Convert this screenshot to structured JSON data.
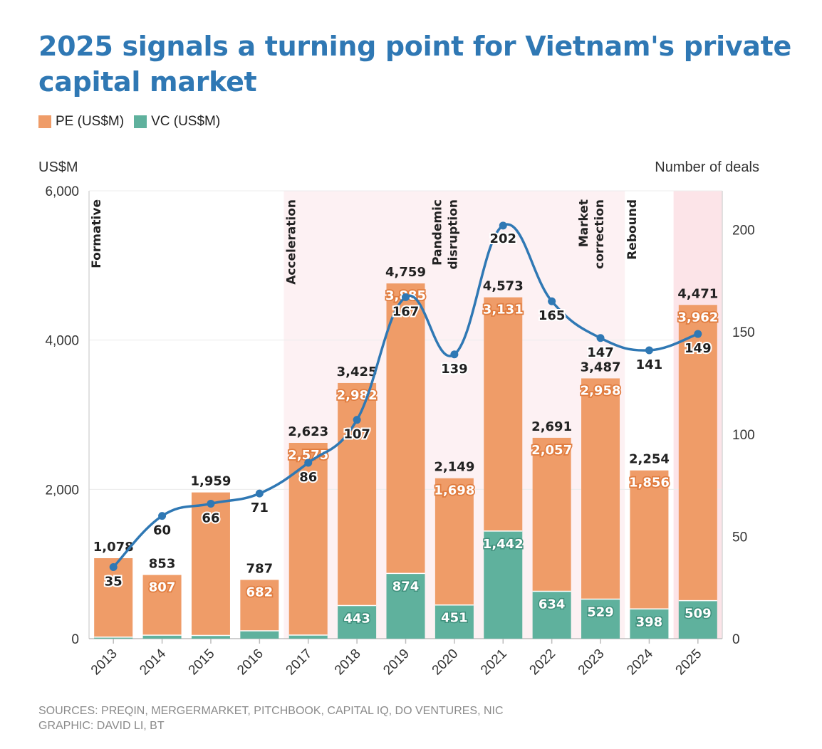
{
  "title": "2025 signals a turning point for Vietnam's private capital market",
  "legend": [
    {
      "label": "PE (US$M)",
      "color": "#ef9c68"
    },
    {
      "label": "VC (US$M)",
      "color": "#5fb19d"
    }
  ],
  "left_axis_label": "US$M",
  "right_axis_label": "Number of deals",
  "phases": [
    {
      "label": "Formative",
      "start": "2013",
      "shaded": false
    },
    {
      "label": "Acceleration",
      "start": "2017",
      "shaded": true
    },
    {
      "label": "Pandemic\ndisruption",
      "start": "2020",
      "shaded": true
    },
    {
      "label": "Market\ncorrection",
      "start": "2023",
      "shaded": true
    },
    {
      "label": "Rebound",
      "start": "2024",
      "shaded": false
    }
  ],
  "chart_data": {
    "type": "bar",
    "stacked": true,
    "categories": [
      "2013",
      "2014",
      "2015",
      "2016",
      "2017",
      "2018",
      "2019",
      "2020",
      "2021",
      "2022",
      "2023",
      "2024",
      "2025"
    ],
    "series": [
      {
        "name": "VC (US$M)",
        "color": "#5fb19d",
        "values": [
          20,
          46,
          43,
          105,
          48,
          443,
          874,
          451,
          1442,
          634,
          529,
          398,
          509
        ],
        "labels": [
          "",
          "",
          "",
          "",
          "",
          "443",
          "874",
          "451",
          "1,442",
          "634",
          "529",
          "398",
          "509"
        ]
      },
      {
        "name": "PE (US$M)",
        "color": "#ef9c68",
        "values": [
          1058,
          807,
          1916,
          682,
          2575,
          2982,
          3885,
          1698,
          3131,
          2057,
          2958,
          1856,
          3962
        ],
        "labels": [
          "",
          "807",
          "",
          "682",
          "2,575",
          "2,982",
          "3,885",
          "1,698",
          "3,131",
          "2,057",
          "2,958",
          "1,856",
          "3,962"
        ]
      }
    ],
    "totals": [
      1078,
      853,
      1959,
      787,
      2623,
      3425,
      4759,
      2149,
      4573,
      2691,
      3487,
      2254,
      4471
    ],
    "total_labels": [
      "1,078",
      "853",
      "1,959",
      "787",
      "2,623",
      "3,425",
      "4,759",
      "2,149",
      "4,573",
      "2,691",
      "3,487",
      "2,254",
      "4,471"
    ],
    "line": {
      "color": "#2f78b4",
      "axis": "right",
      "values": [
        35,
        60,
        66,
        71,
        86,
        107,
        167,
        139,
        202,
        165,
        147,
        141,
        149
      ],
      "labels": [
        "35",
        "60",
        "66",
        "71",
        "86",
        "107",
        "167",
        "139",
        "202",
        "165",
        "147",
        "141",
        "149"
      ]
    },
    "ylim": [
      0,
      6000
    ],
    "yticks": [
      0,
      2000,
      4000,
      6000
    ],
    "ytick_labels": [
      "0",
      "2,000",
      "4,000",
      "6,000"
    ],
    "y2lim": [
      0,
      219
    ],
    "y2ticks": [
      0,
      50,
      100,
      150,
      200
    ],
    "y2tick_labels": [
      "0",
      "50",
      "100",
      "150",
      "200"
    ]
  },
  "sources": "SOURCES: PREQIN, MERGERMARKET, PITCHBOOK, CAPITAL IQ, DO VENTURES, NIC",
  "graphic": "GRAPHIC: DAVID LI, BT"
}
